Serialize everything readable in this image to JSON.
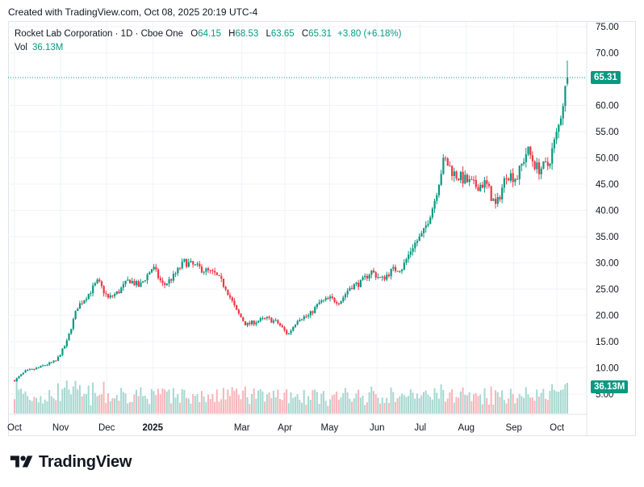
{
  "header": {
    "created_text": "Created with TradingView.com, Oct 08, 2025 20:19 UTC-4"
  },
  "legend": {
    "symbol": "Rocket Lab Corporation · 1D · Cboe One",
    "o_label": "O",
    "o_value": "64.15",
    "h_label": "H",
    "h_value": "68.53",
    "l_label": "L",
    "l_value": "63.65",
    "c_label": "C",
    "c_value": "65.31",
    "change": "+3.80 (+6.18%)",
    "vol_label": "Vol",
    "vol_value": "36.13M"
  },
  "badges": {
    "price": "65.31",
    "volume": "36.13M"
  },
  "logo": {
    "text": "TradingView",
    "icon": "tradingview-logo-icon"
  },
  "colors": {
    "up": "#089981",
    "down": "#f23645",
    "up_volume": "#a5d8d0",
    "down_volume": "#f7b5b9",
    "grid": "#f0f3fa",
    "axis_text": "#131722"
  },
  "chart_data": {
    "type": "candlestick",
    "title": "Rocket Lab Corporation · 1D · Cboe One",
    "price_axis": {
      "ticks": [
        "75.00",
        "70.00",
        "65.00",
        "60.00",
        "55.00",
        "50.00",
        "45.00",
        "40.00",
        "35.00",
        "30.00",
        "25.00",
        "20.00",
        "15.00",
        "10.00",
        "5.00"
      ],
      "range": [
        3.6,
        76.8
      ]
    },
    "time_axis": {
      "labels": [
        "Oct",
        "Nov",
        "Dec",
        "2025",
        "Mar",
        "Apr",
        "May",
        "Jun",
        "Jul",
        "Aug",
        "Sep",
        "Oct"
      ]
    },
    "last_price": 65.31,
    "last_volume_millions": 36.13,
    "grid": true,
    "series_close_weekly": [
      {
        "date": "2024-10-01",
        "close": 7.6
      },
      {
        "date": "2024-10-08",
        "close": 9.3
      },
      {
        "date": "2024-10-15",
        "close": 9.8
      },
      {
        "date": "2024-10-22",
        "close": 10.6
      },
      {
        "date": "2024-10-29",
        "close": 11.3
      },
      {
        "date": "2024-11-05",
        "close": 14.8
      },
      {
        "date": "2024-11-12",
        "close": 21.5
      },
      {
        "date": "2024-11-19",
        "close": 23.8
      },
      {
        "date": "2024-11-26",
        "close": 26.5
      },
      {
        "date": "2024-12-03",
        "close": 23.2
      },
      {
        "date": "2024-12-10",
        "close": 24.5
      },
      {
        "date": "2024-12-17",
        "close": 26.8
      },
      {
        "date": "2024-12-24",
        "close": 25.5
      },
      {
        "date": "2025-01-02",
        "close": 29.2
      },
      {
        "date": "2025-01-09",
        "close": 25.6
      },
      {
        "date": "2025-01-16",
        "close": 27.4
      },
      {
        "date": "2025-01-23",
        "close": 30.2
      },
      {
        "date": "2025-01-30",
        "close": 29.4
      },
      {
        "date": "2025-02-06",
        "close": 28.6
      },
      {
        "date": "2025-02-13",
        "close": 27.8
      },
      {
        "date": "2025-02-20",
        "close": 25.4
      },
      {
        "date": "2025-02-27",
        "close": 20.9
      },
      {
        "date": "2025-03-06",
        "close": 18.2
      },
      {
        "date": "2025-03-13",
        "close": 18.9
      },
      {
        "date": "2025-03-20",
        "close": 19.4
      },
      {
        "date": "2025-03-27",
        "close": 18.6
      },
      {
        "date": "2025-04-03",
        "close": 16.3
      },
      {
        "date": "2025-04-10",
        "close": 19.5
      },
      {
        "date": "2025-04-17",
        "close": 19.9
      },
      {
        "date": "2025-04-24",
        "close": 22.4
      },
      {
        "date": "2025-05-01",
        "close": 23.2
      },
      {
        "date": "2025-05-08",
        "close": 22.6
      },
      {
        "date": "2025-05-15",
        "close": 25.5
      },
      {
        "date": "2025-05-22",
        "close": 26.2
      },
      {
        "date": "2025-05-29",
        "close": 28.4
      },
      {
        "date": "2025-06-05",
        "close": 26.8
      },
      {
        "date": "2025-06-12",
        "close": 28.6
      },
      {
        "date": "2025-06-19",
        "close": 29.1
      },
      {
        "date": "2025-06-26",
        "close": 33.2
      },
      {
        "date": "2025-07-03",
        "close": 35.6
      },
      {
        "date": "2025-07-10",
        "close": 41.2
      },
      {
        "date": "2025-07-17",
        "close": 49.8
      },
      {
        "date": "2025-07-24",
        "close": 46.9
      },
      {
        "date": "2025-07-31",
        "close": 45.8
      },
      {
        "date": "2025-08-07",
        "close": 44.6
      },
      {
        "date": "2025-08-14",
        "close": 45.2
      },
      {
        "date": "2025-08-21",
        "close": 40.6
      },
      {
        "date": "2025-08-28",
        "close": 47.0
      },
      {
        "date": "2025-09-04",
        "close": 46.2
      },
      {
        "date": "2025-09-11",
        "close": 51.5
      },
      {
        "date": "2025-09-18",
        "close": 47.8
      },
      {
        "date": "2025-09-25",
        "close": 48.6
      },
      {
        "date": "2025-10-02",
        "close": 55.8
      },
      {
        "date": "2025-10-08",
        "close": 65.31
      }
    ]
  }
}
